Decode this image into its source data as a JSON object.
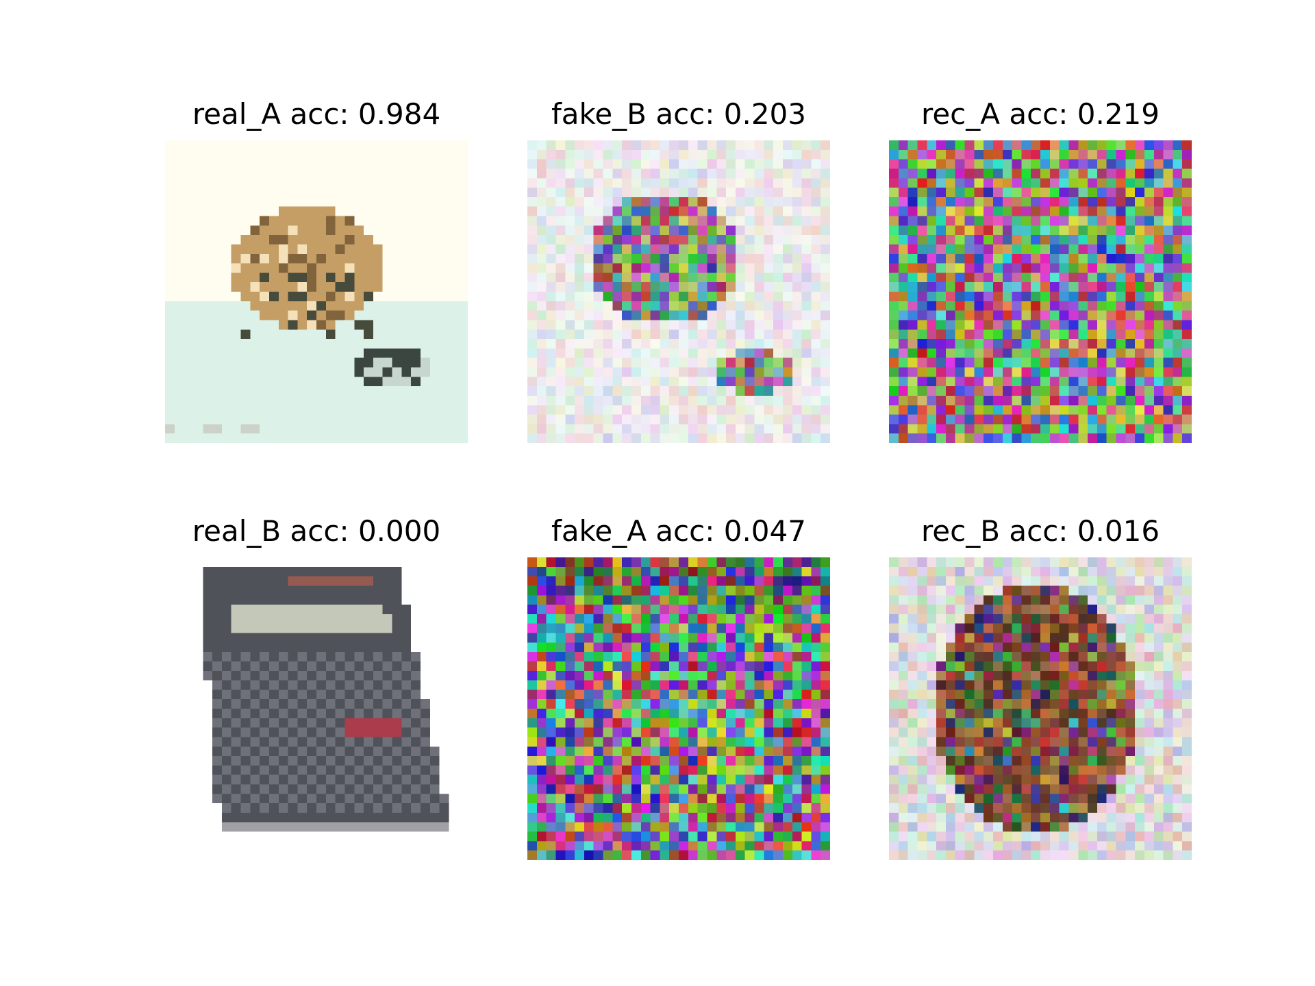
{
  "panels": [
    {
      "title": "real_A acc: 0.984",
      "kind": "cat-sleeping"
    },
    {
      "title": "fake_B acc: 0.203",
      "kind": "noisy-blob-light"
    },
    {
      "title": "rec_A acc: 0.219",
      "kind": "color-noise"
    },
    {
      "title": "real_B acc: 0.000",
      "kind": "calculator"
    },
    {
      "title": "fake_A acc: 0.047",
      "kind": "color-noise-dark"
    },
    {
      "title": "rec_B acc: 0.016",
      "kind": "noisy-blob-dark"
    }
  ]
}
